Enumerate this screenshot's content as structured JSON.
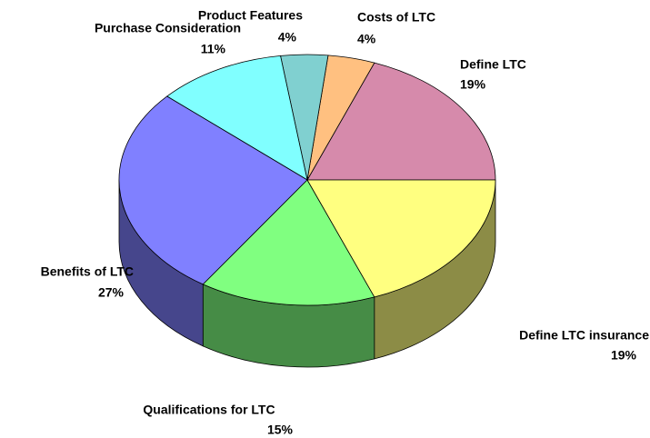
{
  "chart_data": {
    "type": "pie3d",
    "categories": [
      "Define LTC",
      "Costs of LTC",
      "Product Features",
      "Purchase Consideration",
      "Benefits of LTC",
      "Qualifications for LTC",
      "Define LTC insurance"
    ],
    "values": [
      19,
      4,
      4,
      11,
      27,
      15,
      19
    ],
    "value_labels": [
      "19%",
      "4%",
      "4%",
      "11%",
      "27%",
      "15%",
      "19%"
    ],
    "colors": [
      "#d68aab",
      "#ffc080",
      "#80d0d0",
      "#80ffff",
      "#8080ff",
      "#80ff80",
      "#ffff80"
    ]
  }
}
